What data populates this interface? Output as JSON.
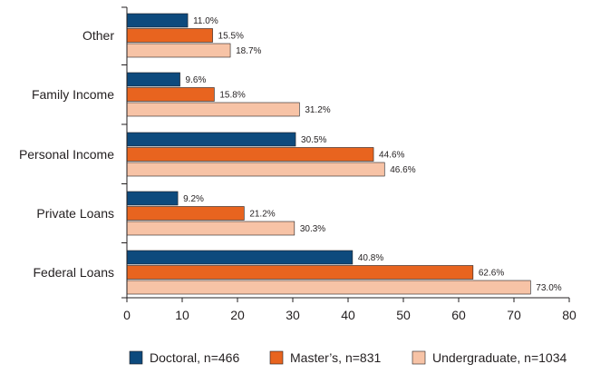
{
  "chart_data": {
    "type": "bar",
    "orientation": "horizontal",
    "title": "",
    "xlabel": "",
    "ylabel": "",
    "categories": [
      "Other",
      "Family Income",
      "Personal Income",
      "Private Loans",
      "Federal Loans"
    ],
    "series": [
      {
        "name": "Doctoral, n=466",
        "color": "#0d4a7d",
        "values": [
          11.0,
          9.6,
          30.5,
          9.2,
          40.8
        ],
        "labels": [
          "11.0%",
          "9.6%",
          "30.5%",
          "9.2%",
          "40.8%"
        ]
      },
      {
        "name": "Master's, n=831",
        "color": "#e8641f",
        "values": [
          15.5,
          15.8,
          44.6,
          21.2,
          62.6
        ],
        "labels": [
          "15.5%",
          "15.8%",
          "44.6%",
          "21.2%",
          "62.6%"
        ]
      },
      {
        "name": "Undergraduate, n=1034",
        "color": "#f7c3a6",
        "values": [
          18.7,
          31.2,
          46.6,
          30.3,
          73.0
        ],
        "labels": [
          "18.7%",
          "31.2%",
          "46.6%",
          "30.3%",
          "73.0%"
        ]
      }
    ],
    "xlim": [
      0,
      80
    ],
    "xticks": [
      0,
      10,
      20,
      30,
      40,
      50,
      60,
      70,
      80
    ],
    "xtick_labels": [
      "0",
      "10",
      "20",
      "30",
      "40",
      "50",
      "60",
      "70",
      "80"
    ],
    "grid": false,
    "legend": {
      "position": "bottom",
      "entries": [
        "Doctoral, n=466",
        "Master’s, n=831",
        "Undergraduate, n=1034"
      ]
    }
  }
}
